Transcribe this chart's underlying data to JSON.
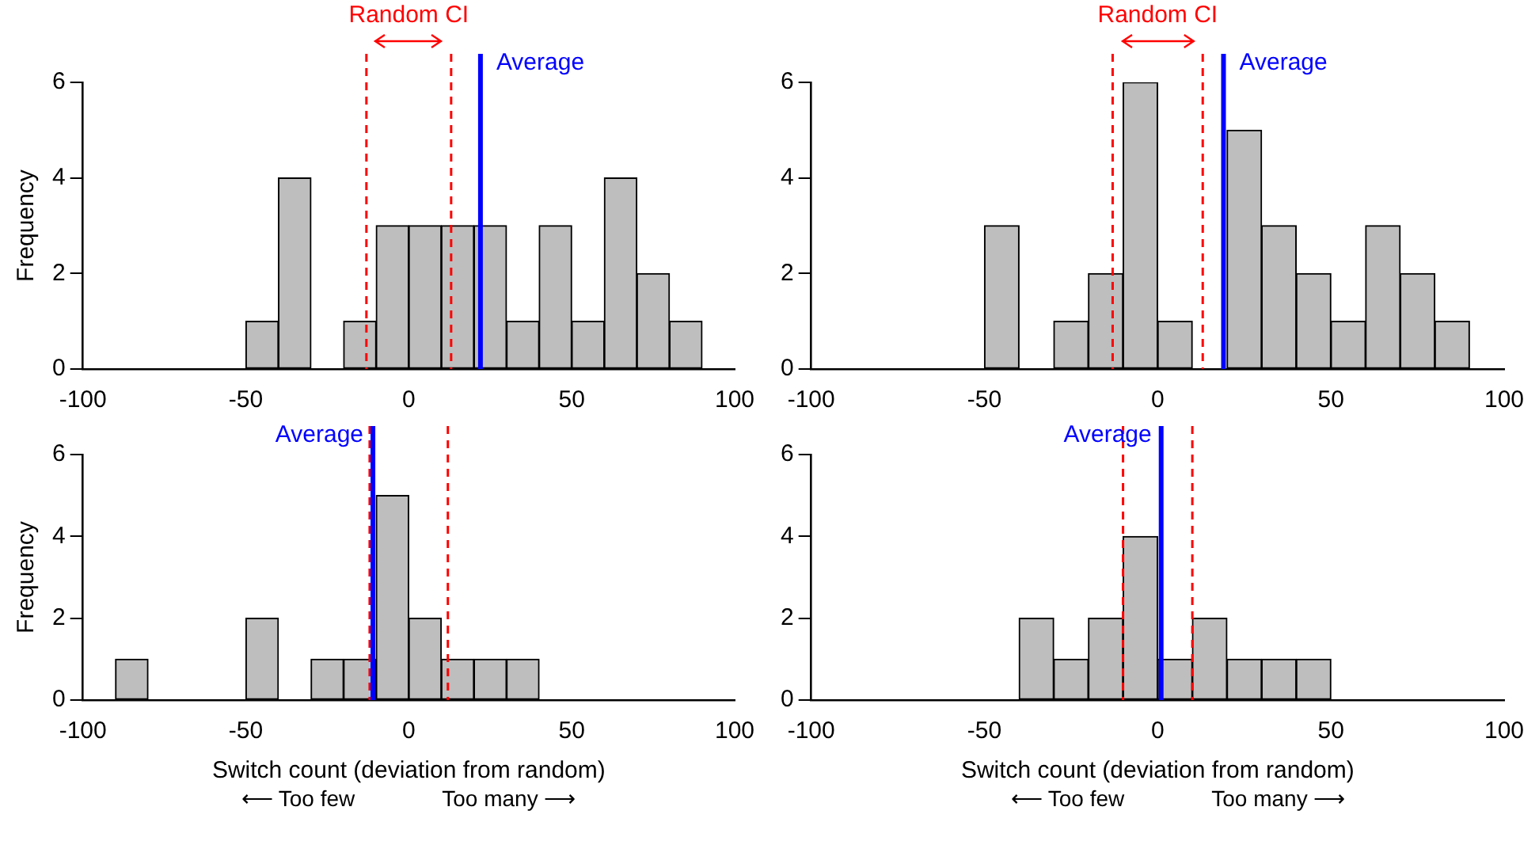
{
  "chart_data": [
    {
      "type": "histogram",
      "ylabel": "Frequency",
      "bins": [
        -100,
        -90,
        -80,
        -70,
        -60,
        -50,
        -40,
        -30,
        -20,
        -10,
        0,
        10,
        20,
        30,
        40,
        50,
        60,
        70,
        80,
        90,
        100
      ],
      "values": [
        0,
        0,
        0,
        0,
        0,
        1,
        4,
        0,
        1,
        3,
        3,
        3,
        3,
        1,
        3,
        1,
        4,
        2,
        1,
        0
      ],
      "color": "#bebebe",
      "xlim": [
        -100,
        100
      ],
      "xticks": [
        -100,
        -50,
        0,
        50,
        100
      ],
      "ylim": [
        0,
        6
      ],
      "yticks": [
        0,
        2,
        4,
        6
      ],
      "grid": false,
      "legend": false,
      "ref_lines": [
        {
          "axis": "x",
          "value": -13,
          "color": "#ff0000",
          "line_style": "dashed"
        },
        {
          "axis": "x",
          "value": 13,
          "color": "#ff0000",
          "line_style": "dashed"
        },
        {
          "axis": "x",
          "value": 22,
          "label": "Average",
          "color": "#0000ff",
          "line_style": "solid"
        }
      ],
      "annotations": [
        "Random CI"
      ]
    },
    {
      "type": "histogram",
      "bins": [
        -100,
        -90,
        -80,
        -70,
        -60,
        -50,
        -40,
        -30,
        -20,
        -10,
        0,
        10,
        20,
        30,
        40,
        50,
        60,
        70,
        80,
        90,
        100
      ],
      "values": [
        0,
        0,
        0,
        0,
        0,
        3,
        0,
        1,
        2,
        6,
        1,
        0,
        5,
        3,
        2,
        1,
        3,
        2,
        1,
        0
      ],
      "color": "#bebebe",
      "xlim": [
        -100,
        100
      ],
      "xticks": [
        -100,
        -50,
        0,
        50,
        100
      ],
      "ylim": [
        0,
        6
      ],
      "yticks": [
        0,
        2,
        4,
        6
      ],
      "grid": false,
      "legend": false,
      "ref_lines": [
        {
          "axis": "x",
          "value": -13,
          "color": "#ff0000",
          "line_style": "dashed"
        },
        {
          "axis": "x",
          "value": 13,
          "color": "#ff0000",
          "line_style": "dashed"
        },
        {
          "axis": "x",
          "value": 19,
          "label": "Average",
          "color": "#0000ff",
          "line_style": "solid"
        }
      ],
      "annotations": [
        "Random CI"
      ]
    },
    {
      "type": "histogram",
      "ylabel": "Frequency",
      "xlabel": "Switch count (deviation from random)",
      "bins": [
        -100,
        -90,
        -80,
        -70,
        -60,
        -50,
        -40,
        -30,
        -20,
        -10,
        0,
        10,
        20,
        30,
        40,
        50,
        60,
        70,
        80,
        90,
        100
      ],
      "values": [
        0,
        1,
        0,
        0,
        0,
        2,
        0,
        1,
        1,
        5,
        2,
        1,
        1,
        1,
        0,
        0,
        0,
        0,
        0,
        0
      ],
      "color": "#bebebe",
      "xlim": [
        -100,
        100
      ],
      "xticks": [
        -100,
        -50,
        0,
        50,
        100
      ],
      "ylim": [
        0,
        6
      ],
      "yticks": [
        0,
        2,
        4,
        6
      ],
      "grid": false,
      "legend": false,
      "ref_lines": [
        {
          "axis": "x",
          "value": -12,
          "color": "#ff0000",
          "line_style": "dashed"
        },
        {
          "axis": "x",
          "value": 12,
          "color": "#ff0000",
          "line_style": "dashed"
        },
        {
          "axis": "x",
          "value": -11,
          "label": "Average",
          "color": "#0000ff",
          "line_style": "solid"
        }
      ],
      "annotations": [
        "⟵ Too few",
        "Too many ⟶"
      ]
    },
    {
      "type": "histogram",
      "xlabel": "Switch count (deviation from random)",
      "bins": [
        -100,
        -90,
        -80,
        -70,
        -60,
        -50,
        -40,
        -30,
        -20,
        -10,
        0,
        10,
        20,
        30,
        40,
        50,
        60,
        70,
        80,
        90,
        100
      ],
      "values": [
        0,
        0,
        0,
        0,
        0,
        0,
        2,
        1,
        2,
        4,
        1,
        2,
        1,
        1,
        1,
        0,
        0,
        0,
        0,
        0
      ],
      "color": "#bebebe",
      "xlim": [
        -100,
        100
      ],
      "xticks": [
        -100,
        -50,
        0,
        50,
        100
      ],
      "ylim": [
        0,
        6
      ],
      "yticks": [
        0,
        2,
        4,
        6
      ],
      "grid": false,
      "legend": false,
      "ref_lines": [
        {
          "axis": "x",
          "value": -10,
          "color": "#ff0000",
          "line_style": "dashed"
        },
        {
          "axis": "x",
          "value": 10,
          "color": "#ff0000",
          "line_style": "dashed"
        },
        {
          "axis": "x",
          "value": 1,
          "label": "Average",
          "color": "#0000ff",
          "line_style": "solid"
        }
      ],
      "annotations": [
        "⟵ Too few",
        "Too many ⟶"
      ]
    }
  ]
}
